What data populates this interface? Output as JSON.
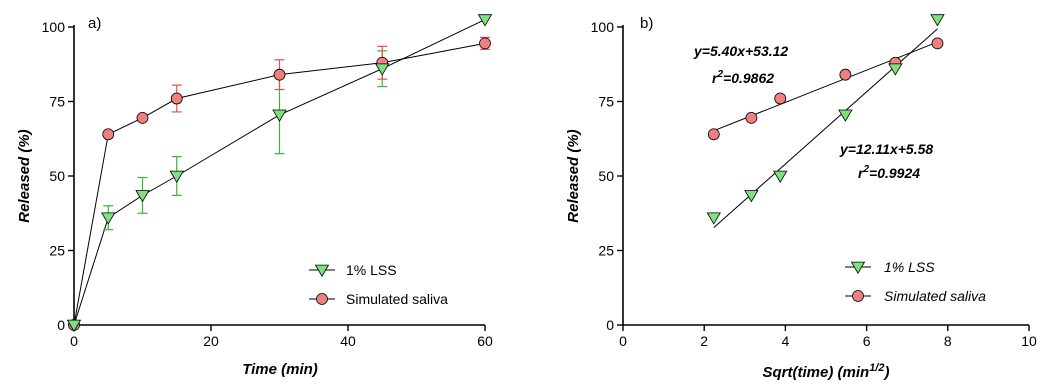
{
  "colors": {
    "lss": "#7ee07e",
    "saliva": "#f08080",
    "lss_err": "#3cb43c",
    "saliva_err": "#e05050",
    "axis": "#000000"
  },
  "chart_data": [
    {
      "panel": "a)",
      "type": "line",
      "xlabel": "Time (min)",
      "ylabel": "Released (%)",
      "xlim": [
        0,
        60
      ],
      "ylim": [
        0,
        100
      ],
      "xticks": [
        0,
        20,
        40,
        60
      ],
      "yticks": [
        0,
        25,
        50,
        75,
        100
      ],
      "legend_position": "bottom-right",
      "series": [
        {
          "name": "1% LSS",
          "marker": "triangle-down",
          "x": [
            0,
            5,
            10,
            15,
            30,
            45,
            60
          ],
          "y": [
            0,
            36,
            43.5,
            50,
            70.5,
            86,
            102.5
          ],
          "err": [
            0,
            4,
            6,
            6.5,
            13,
            6,
            0
          ]
        },
        {
          "name": "Simulated saliva",
          "marker": "circle",
          "x": [
            0,
            5,
            10,
            15,
            30,
            45,
            60
          ],
          "y": [
            0,
            64,
            69.5,
            76,
            84,
            88,
            94.5
          ],
          "err": [
            0,
            0,
            0,
            4.5,
            5,
            5.5,
            2
          ]
        }
      ]
    },
    {
      "panel": "b)",
      "type": "scatter",
      "xlabel": "Sqrt(time) (min",
      "xlabel_sup": "1/2",
      "xlabel_end": ")",
      "ylabel": "Released (%)",
      "xlim": [
        0,
        10
      ],
      "ylim": [
        0,
        100
      ],
      "xticks": [
        0,
        2,
        4,
        6,
        8,
        10
      ],
      "yticks": [
        0,
        25,
        50,
        75,
        100
      ],
      "legend_position": "bottom-right",
      "series": [
        {
          "name": "1% LSS",
          "marker": "triangle-down",
          "x": [
            2.236,
            3.162,
            3.873,
            5.477,
            6.708,
            7.746
          ],
          "y": [
            36,
            43.5,
            50,
            70.5,
            86,
            102.5
          ],
          "fit": {
            "slope": 12.11,
            "intercept": 5.58,
            "x_range": [
              2.236,
              7.746
            ]
          }
        },
        {
          "name": "Simulated saliva",
          "marker": "circle",
          "x": [
            2.236,
            3.162,
            3.873,
            5.477,
            6.708,
            7.746
          ],
          "y": [
            64,
            69.5,
            76,
            84,
            88,
            94.5
          ],
          "fit": {
            "slope": 5.4,
            "intercept": 53.12,
            "x_range": [
              2.236,
              7.746
            ]
          }
        }
      ],
      "annotations": {
        "saliva_eq": "y=5.40x+53.12",
        "saliva_r2_prefix": "r",
        "saliva_r2_sup": "2",
        "saliva_r2_value": "=0.9862",
        "lss_eq": "y=12.11x+5.58",
        "lss_r2_prefix": "r",
        "lss_r2_sup": "2",
        "lss_r2_value": "=0.9924"
      }
    }
  ]
}
